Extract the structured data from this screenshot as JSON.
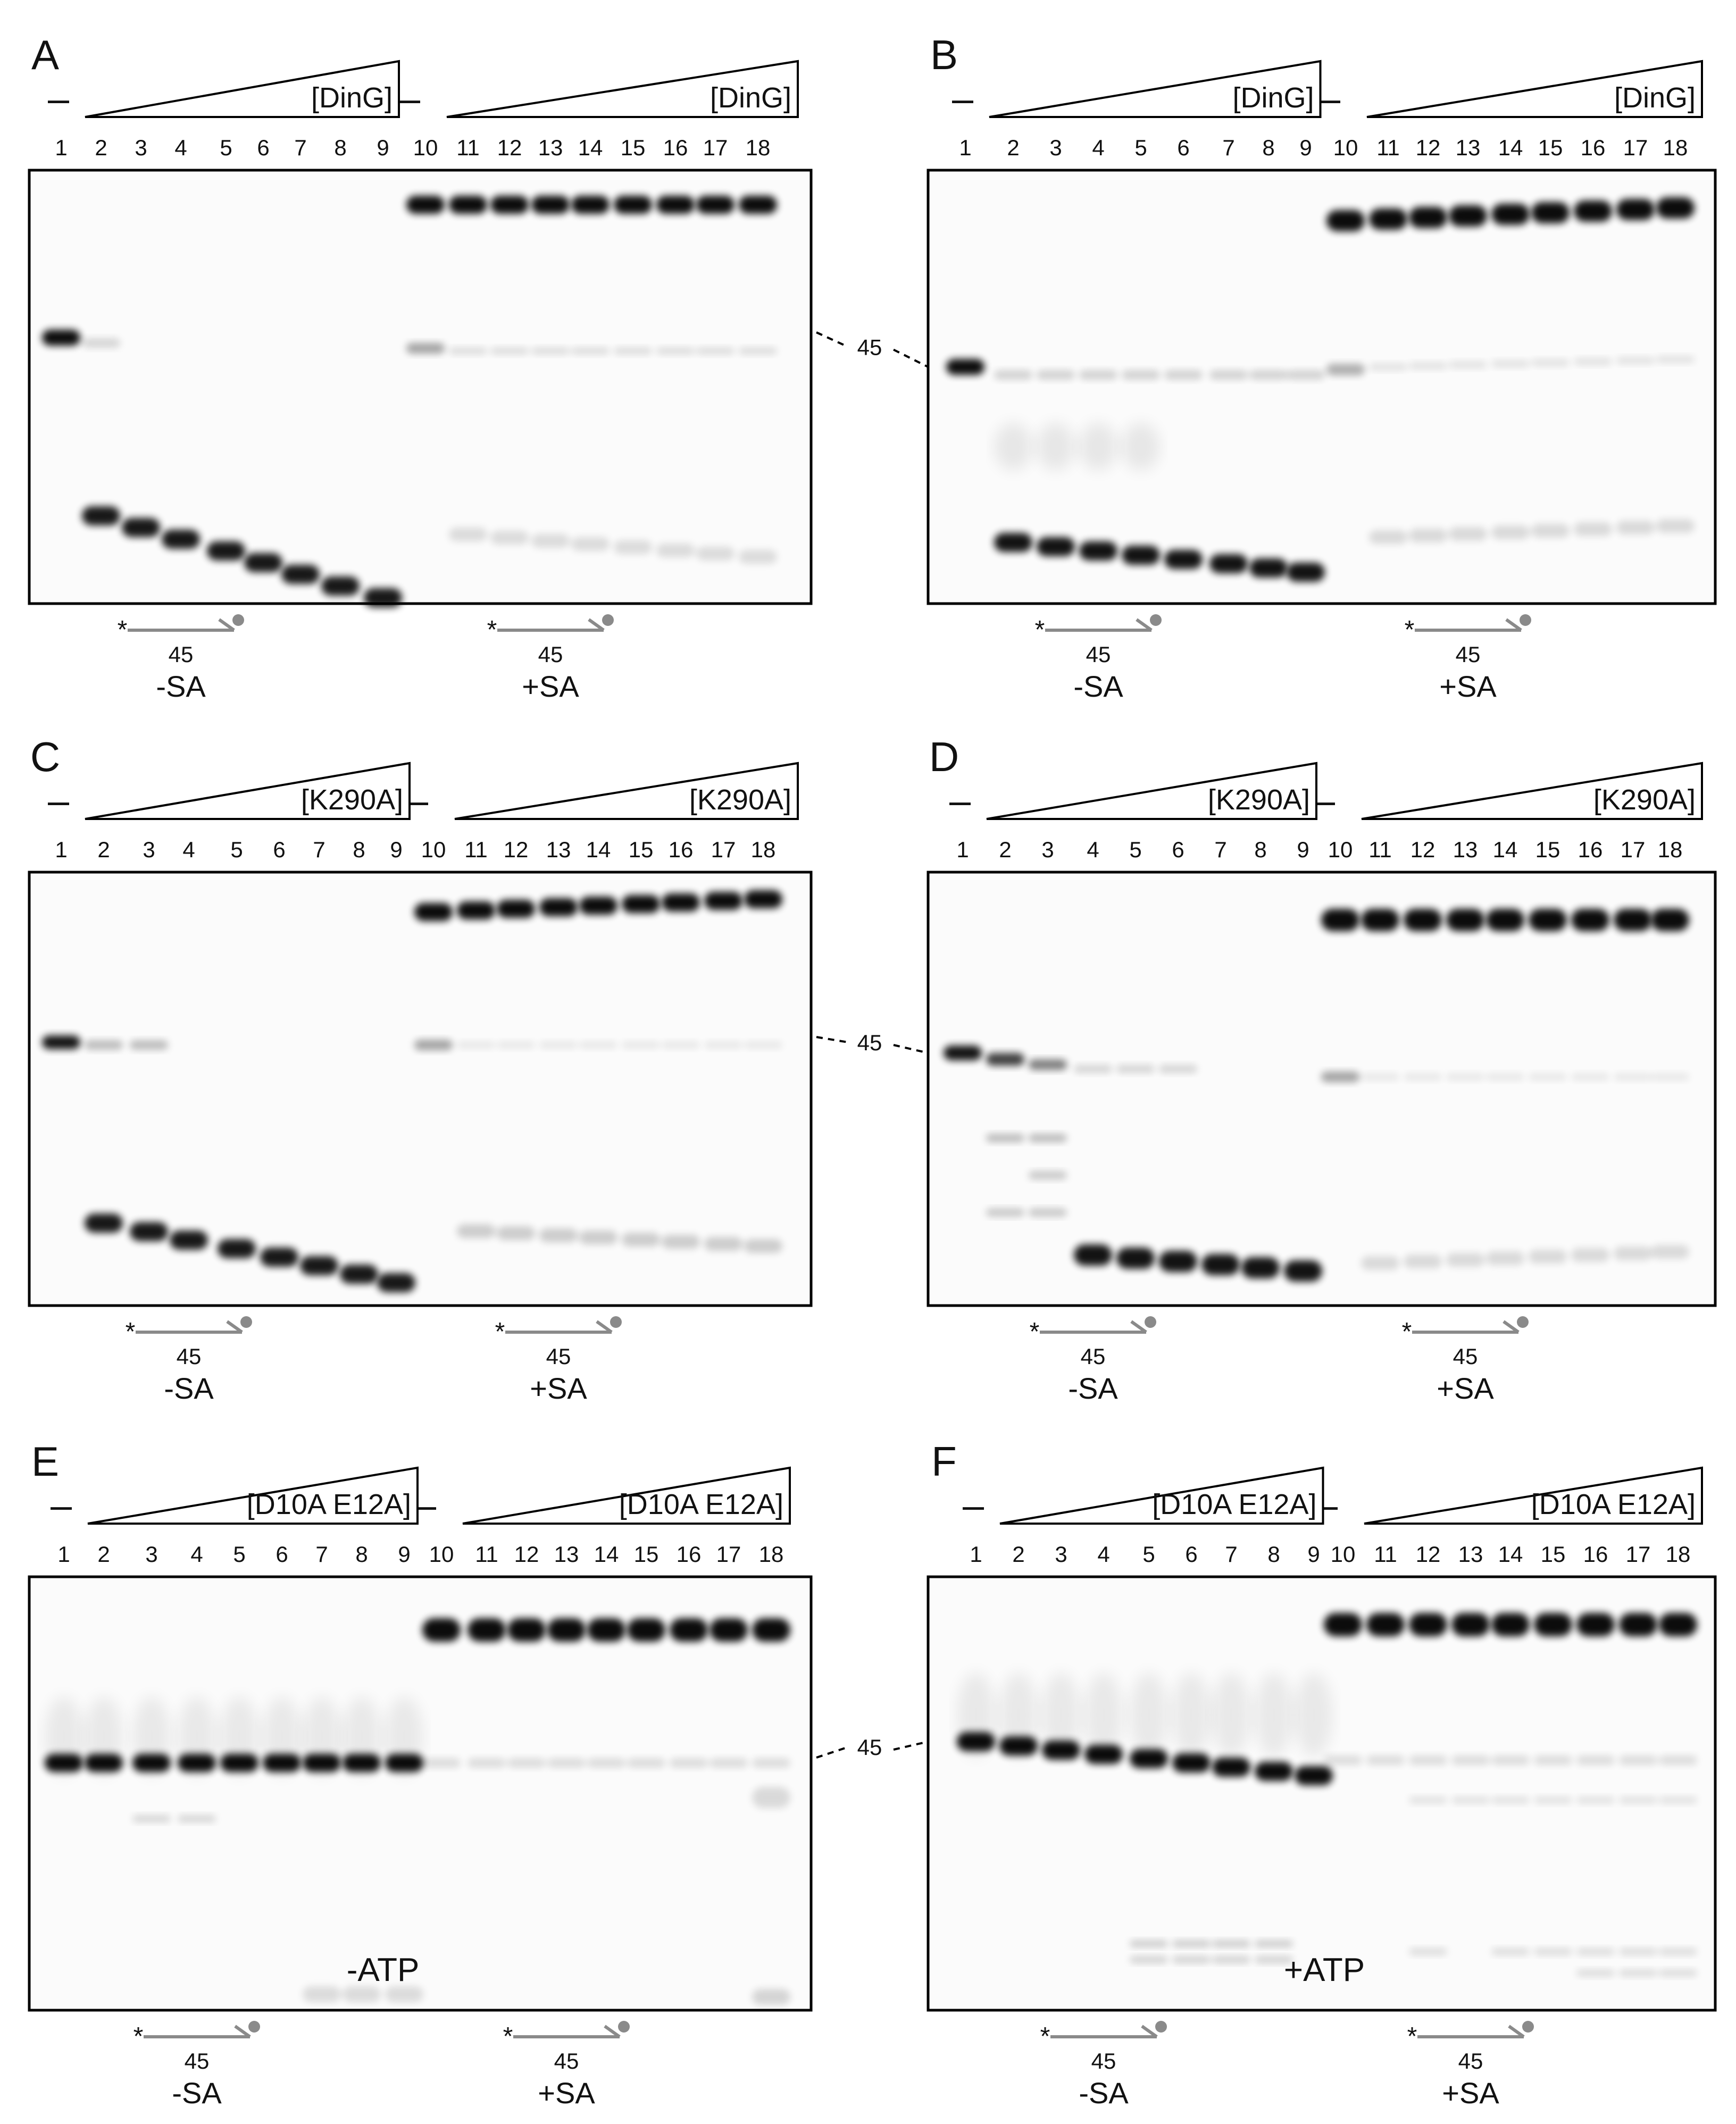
{
  "figure": {
    "marker_size": "45",
    "minus_sign": "–",
    "panels": [
      {
        "label": "A",
        "protein": "[DinG]",
        "lanes": [
          "1",
          "2",
          "3",
          "4",
          "5",
          "6",
          "7",
          "8",
          "9",
          "10",
          "11",
          "12",
          "13",
          "14",
          "15",
          "16",
          "17",
          "18"
        ],
        "conditions": [
          "-SA",
          "+SA"
        ],
        "annotation": ""
      },
      {
        "label": "B",
        "protein": "[DinG]",
        "lanes": [
          "1",
          "2",
          "3",
          "4",
          "5",
          "6",
          "7",
          "8",
          "9",
          "10",
          "11",
          "12",
          "13",
          "14",
          "15",
          "16",
          "17",
          "18"
        ],
        "conditions": [
          "-SA",
          "+SA"
        ],
        "annotation": ""
      },
      {
        "label": "C",
        "protein": "[K290A]",
        "lanes": [
          "1",
          "2",
          "3",
          "4",
          "5",
          "6",
          "7",
          "8",
          "9",
          "10",
          "11",
          "12",
          "13",
          "14",
          "15",
          "16",
          "17",
          "18"
        ],
        "conditions": [
          "-SA",
          "+SA"
        ],
        "annotation": ""
      },
      {
        "label": "D",
        "protein": "[K290A]",
        "lanes": [
          "1",
          "2",
          "3",
          "4",
          "5",
          "6",
          "7",
          "8",
          "9",
          "10",
          "11",
          "12",
          "13",
          "14",
          "15",
          "16",
          "17",
          "18"
        ],
        "conditions": [
          "-SA",
          "+SA"
        ],
        "annotation": ""
      },
      {
        "label": "E",
        "protein": "[D10A E12A]",
        "lanes": [
          "1",
          "2",
          "3",
          "4",
          "5",
          "6",
          "7",
          "8",
          "9",
          "10",
          "11",
          "12",
          "13",
          "14",
          "15",
          "16",
          "17",
          "18"
        ],
        "conditions": [
          "-SA",
          "+SA"
        ],
        "annotation": "-ATP"
      },
      {
        "label": "F",
        "protein": "[D10A E12A]",
        "lanes": [
          "1",
          "2",
          "3",
          "4",
          "5",
          "6",
          "7",
          "8",
          "9",
          "10",
          "11",
          "12",
          "13",
          "14",
          "15",
          "16",
          "17",
          "18"
        ],
        "conditions": [
          "-SA",
          "+SA"
        ],
        "annotation": "+ATP"
      }
    ]
  }
}
